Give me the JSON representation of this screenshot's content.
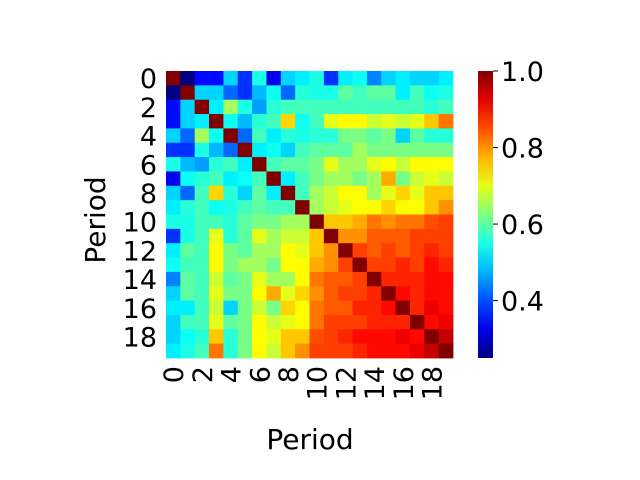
{
  "chart_data": {
    "type": "heatmap",
    "title": "",
    "xlabel": "Period",
    "ylabel": "Period",
    "x_tick_labels": [
      "0",
      "2",
      "4",
      "6",
      "8",
      "10",
      "12",
      "14",
      "16",
      "18"
    ],
    "y_tick_labels": [
      "0",
      "2",
      "4",
      "6",
      "8",
      "10",
      "12",
      "14",
      "16",
      "18"
    ],
    "colormap": "jet",
    "colorbar": {
      "ticks": [
        "0.4",
        "0.6",
        "0.8",
        "1.0"
      ],
      "vmin": 0.25,
      "vmax": 1.0
    },
    "matrix": [
      [
        1.0,
        0.25,
        0.35,
        0.35,
        0.5,
        0.38,
        0.55,
        0.33,
        0.5,
        0.52,
        0.55,
        0.38,
        0.52,
        0.54,
        0.44,
        0.5,
        0.52,
        0.5,
        0.5,
        0.52
      ],
      [
        0.25,
        1.0,
        0.5,
        0.5,
        0.42,
        0.38,
        0.48,
        0.54,
        0.42,
        0.56,
        0.55,
        0.55,
        0.6,
        0.58,
        0.6,
        0.6,
        0.52,
        0.58,
        0.54,
        0.55
      ],
      [
        0.35,
        0.5,
        1.0,
        0.52,
        0.65,
        0.55,
        0.46,
        0.56,
        0.58,
        0.58,
        0.58,
        0.58,
        0.58,
        0.58,
        0.58,
        0.58,
        0.58,
        0.58,
        0.56,
        0.58
      ],
      [
        0.35,
        0.5,
        0.52,
        1.0,
        0.54,
        0.48,
        0.56,
        0.58,
        0.75,
        0.54,
        0.58,
        0.7,
        0.72,
        0.72,
        0.68,
        0.7,
        0.68,
        0.7,
        0.76,
        0.82
      ],
      [
        0.5,
        0.42,
        0.65,
        0.54,
        1.0,
        0.42,
        0.58,
        0.52,
        0.56,
        0.55,
        0.56,
        0.56,
        0.62,
        0.62,
        0.6,
        0.62,
        0.5,
        0.6,
        0.56,
        0.56
      ],
      [
        0.38,
        0.38,
        0.55,
        0.48,
        0.42,
        1.0,
        0.52,
        0.54,
        0.5,
        0.58,
        0.6,
        0.6,
        0.6,
        0.65,
        0.62,
        0.62,
        0.62,
        0.62,
        0.62,
        0.62
      ],
      [
        0.55,
        0.48,
        0.46,
        0.56,
        0.58,
        0.52,
        1.0,
        0.58,
        0.6,
        0.6,
        0.62,
        0.7,
        0.65,
        0.65,
        0.7,
        0.72,
        0.68,
        0.72,
        0.72,
        0.72
      ],
      [
        0.33,
        0.54,
        0.56,
        0.58,
        0.52,
        0.54,
        0.58,
        1.0,
        0.52,
        0.58,
        0.62,
        0.65,
        0.65,
        0.62,
        0.65,
        0.78,
        0.62,
        0.68,
        0.7,
        0.68
      ],
      [
        0.5,
        0.42,
        0.58,
        0.75,
        0.56,
        0.5,
        0.6,
        0.52,
        1.0,
        0.58,
        0.65,
        0.68,
        0.72,
        0.72,
        0.65,
        0.7,
        0.75,
        0.7,
        0.76,
        0.76
      ],
      [
        0.52,
        0.56,
        0.58,
        0.54,
        0.55,
        0.58,
        0.6,
        0.58,
        0.58,
        1.0,
        0.65,
        0.68,
        0.7,
        0.72,
        0.72,
        0.75,
        0.72,
        0.72,
        0.76,
        0.8
      ],
      [
        0.55,
        0.55,
        0.58,
        0.58,
        0.56,
        0.6,
        0.62,
        0.62,
        0.65,
        0.65,
        1.0,
        0.76,
        0.76,
        0.78,
        0.82,
        0.8,
        0.82,
        0.82,
        0.85,
        0.86
      ],
      [
        0.38,
        0.55,
        0.58,
        0.7,
        0.56,
        0.6,
        0.7,
        0.65,
        0.68,
        0.68,
        0.76,
        1.0,
        0.8,
        0.8,
        0.84,
        0.84,
        0.84,
        0.86,
        0.86,
        0.86
      ],
      [
        0.52,
        0.6,
        0.58,
        0.72,
        0.62,
        0.6,
        0.65,
        0.65,
        0.72,
        0.7,
        0.76,
        0.8,
        1.0,
        0.86,
        0.84,
        0.86,
        0.84,
        0.86,
        0.88,
        0.86
      ],
      [
        0.54,
        0.58,
        0.58,
        0.72,
        0.62,
        0.65,
        0.65,
        0.62,
        0.72,
        0.72,
        0.78,
        0.8,
        0.86,
        1.0,
        0.86,
        0.86,
        0.88,
        0.86,
        0.9,
        0.88
      ],
      [
        0.44,
        0.6,
        0.58,
        0.68,
        0.6,
        0.62,
        0.7,
        0.65,
        0.65,
        0.72,
        0.82,
        0.84,
        0.84,
        0.86,
        1.0,
        0.88,
        0.88,
        0.88,
        0.9,
        0.9
      ],
      [
        0.5,
        0.6,
        0.58,
        0.7,
        0.62,
        0.62,
        0.72,
        0.78,
        0.7,
        0.75,
        0.8,
        0.84,
        0.86,
        0.86,
        0.88,
        1.0,
        0.9,
        0.88,
        0.9,
        0.9
      ],
      [
        0.52,
        0.52,
        0.58,
        0.68,
        0.5,
        0.62,
        0.68,
        0.62,
        0.75,
        0.72,
        0.82,
        0.84,
        0.84,
        0.88,
        0.88,
        0.9,
        1.0,
        0.88,
        0.92,
        0.9
      ],
      [
        0.5,
        0.58,
        0.58,
        0.7,
        0.6,
        0.62,
        0.72,
        0.68,
        0.7,
        0.72,
        0.82,
        0.86,
        0.86,
        0.86,
        0.88,
        0.88,
        0.88,
        1.0,
        0.9,
        0.92
      ],
      [
        0.5,
        0.54,
        0.56,
        0.76,
        0.56,
        0.62,
        0.72,
        0.7,
        0.76,
        0.76,
        0.85,
        0.86,
        0.88,
        0.9,
        0.9,
        0.9,
        0.92,
        0.9,
        1.0,
        0.95
      ],
      [
        0.52,
        0.55,
        0.58,
        0.82,
        0.56,
        0.62,
        0.72,
        0.68,
        0.76,
        0.8,
        0.86,
        0.86,
        0.86,
        0.88,
        0.9,
        0.9,
        0.9,
        0.92,
        0.95,
        1.0
      ]
    ]
  }
}
